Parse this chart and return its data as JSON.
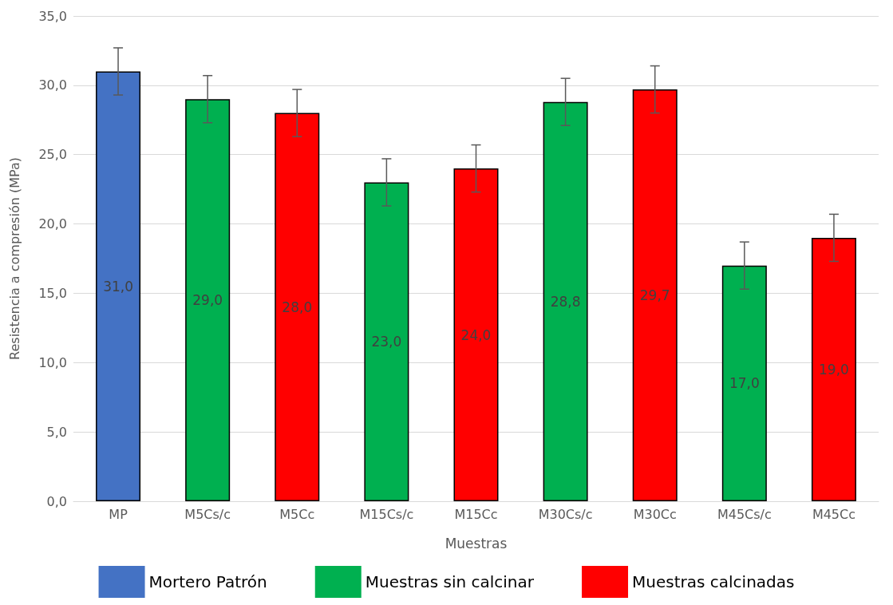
{
  "chart_data": {
    "type": "bar",
    "xlabel": "Muestras",
    "ylabel": "Resistencia a compresión (MPa)",
    "categories": [
      "MP",
      "M5Cs/c",
      "M5Cc",
      "M15Cs/c",
      "M15Cc",
      "M30Cs/c",
      "M30Cc",
      "M45Cs/c",
      "M45Cc"
    ],
    "series": [
      {
        "name": "Mortero Patrón",
        "color": "#4472c4",
        "values": [
          31.0,
          null,
          null,
          null,
          null,
          null,
          null,
          null,
          null
        ],
        "errors": [
          1.7,
          null,
          null,
          null,
          null,
          null,
          null,
          null,
          null
        ],
        "value_labels": [
          "31,0",
          null,
          null,
          null,
          null,
          null,
          null,
          null,
          null
        ]
      },
      {
        "name": "Muestras sin calcinar",
        "color": "#00b050",
        "values": [
          null,
          29.0,
          null,
          23.0,
          null,
          28.8,
          null,
          17.0,
          null
        ],
        "errors": [
          null,
          1.7,
          null,
          1.7,
          null,
          1.7,
          null,
          1.7,
          null
        ],
        "value_labels": [
          null,
          "29,0",
          null,
          "23,0",
          null,
          "28,8",
          null,
          "17,0",
          null
        ]
      },
      {
        "name": "Muestras calcinadas",
        "color": "#ff0000",
        "values": [
          null,
          null,
          28.0,
          null,
          24.0,
          null,
          29.7,
          null,
          19.0
        ],
        "errors": [
          null,
          null,
          1.7,
          null,
          1.7,
          null,
          1.7,
          null,
          1.7
        ],
        "value_labels": [
          null,
          null,
          "28,0",
          null,
          "24,0",
          null,
          "29,7",
          null,
          "19,0"
        ]
      }
    ],
    "ylim": [
      0,
      35
    ],
    "yticks": [
      {
        "value": 0,
        "label": "0,0"
      },
      {
        "value": 5,
        "label": "5,0"
      },
      {
        "value": 10,
        "label": "10,0"
      },
      {
        "value": 15,
        "label": "15,0"
      },
      {
        "value": 20,
        "label": "20,0"
      },
      {
        "value": 25,
        "label": "25,0"
      },
      {
        "value": 30,
        "label": "30,0"
      },
      {
        "value": 35,
        "label": "35,0"
      }
    ],
    "grid": "y",
    "legend": "bottom"
  }
}
